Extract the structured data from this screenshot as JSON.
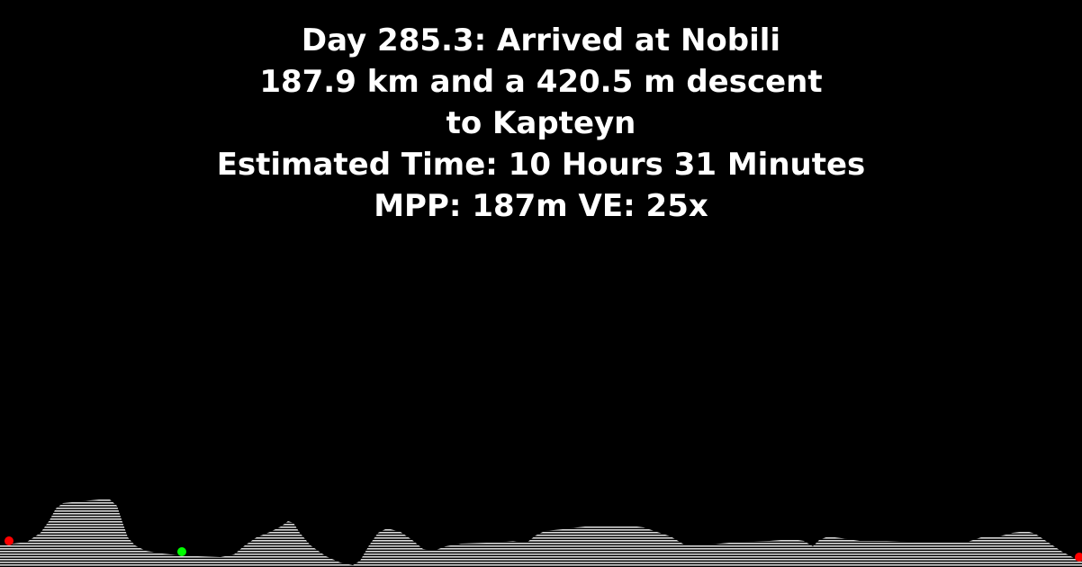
{
  "title_lines": [
    "Day 285.3: Arrived at Nobili",
    "187.9 km and a 420.5 m descent",
    "to Kapteyn",
    "Estimated Time: 10 Hours 31 Minutes",
    "MPP: 187m VE: 25x"
  ],
  "colors": {
    "background": "#000000",
    "text": "#ffffff",
    "terrain": "#d8d8d8",
    "marker_start": "#ff0000",
    "marker_current": "#00ff00",
    "marker_end": "#ff0000"
  }
}
